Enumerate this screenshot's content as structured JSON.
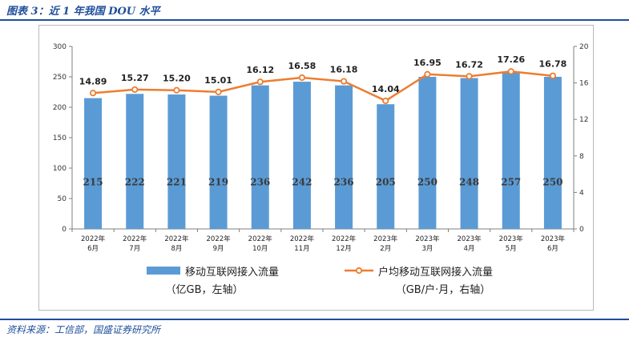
{
  "header": {
    "caption": "图表 3：近 1 年我国 DOU 水平"
  },
  "footer": {
    "source": "资料来源：工信部，国盛证券研究所"
  },
  "chart_data": {
    "type": "bar",
    "categories": [
      [
        "2022年",
        "6月"
      ],
      [
        "2022年",
        "7月"
      ],
      [
        "2022年",
        "8月"
      ],
      [
        "2022年",
        "9月"
      ],
      [
        "2022年",
        "10月"
      ],
      [
        "2022年",
        "11月"
      ],
      [
        "2022年",
        "12月"
      ],
      [
        "2023年",
        "2月"
      ],
      [
        "2023年",
        "3月"
      ],
      [
        "2023年",
        "4月"
      ],
      [
        "2023年",
        "5月"
      ],
      [
        "2023年",
        "6月"
      ]
    ],
    "series": [
      {
        "name": "移动互联网接入流量",
        "name_line2": "（亿GB，左轴）",
        "kind": "bar",
        "axis": "left",
        "color": "#5b9bd5",
        "values": [
          215,
          222,
          221,
          219,
          236,
          242,
          236,
          205,
          250,
          248,
          257,
          250
        ],
        "labels": [
          "215",
          "222",
          "221",
          "219",
          "236",
          "242",
          "236",
          "205",
          "250",
          "248",
          "257",
          "250"
        ]
      },
      {
        "name": "户均移动互联网接入流量",
        "name_line2": "（GB/户·月，右轴）",
        "kind": "line",
        "axis": "right",
        "color": "#ed7d31",
        "values": [
          14.89,
          15.27,
          15.2,
          15.01,
          16.12,
          16.58,
          16.18,
          14.04,
          16.95,
          16.72,
          17.26,
          16.78
        ],
        "labels": [
          "14.89",
          "15.27",
          "15.20",
          "15.01",
          "16.12",
          "16.58",
          "16.18",
          "14.04",
          "16.95",
          "16.72",
          "17.26",
          "16.78"
        ]
      }
    ],
    "left_axis": {
      "ylim": [
        0,
        300
      ],
      "ticks": [
        "0",
        "50",
        "100",
        "150",
        "200",
        "250",
        "300"
      ]
    },
    "right_axis": {
      "ylim": [
        0,
        20
      ],
      "ticks": [
        "0",
        "4",
        "8",
        "12",
        "16",
        "20"
      ]
    },
    "legend_position": "bottom",
    "grid": false
  }
}
